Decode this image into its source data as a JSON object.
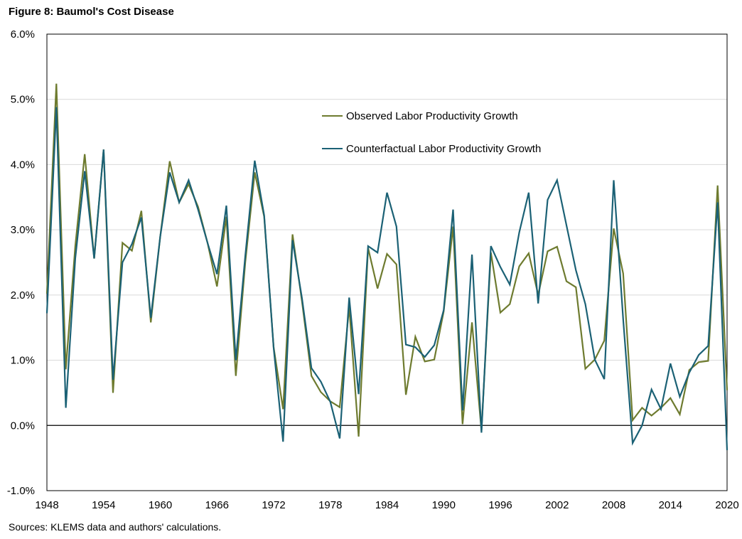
{
  "figure_title": "Figure 8: Baumol's Cost Disease",
  "source_note": "Sources: KLEMS data and authors' calculations.",
  "colors": {
    "observed": "#6e7b2f",
    "counterfactual": "#1b6175",
    "grid": "#d9d9d9",
    "zero": "#000000"
  },
  "chart_data": {
    "type": "line",
    "title": "Baumol's Cost Disease",
    "xlabel": "",
    "ylabel": "",
    "xlim": [
      1948,
      2020
    ],
    "ylim": [
      -1.0,
      6.0
    ],
    "y_ticks": [
      -1.0,
      0.0,
      1.0,
      2.0,
      3.0,
      4.0,
      5.0,
      6.0
    ],
    "y_tick_labels": [
      "-1.0%",
      "0.0%",
      "1.0%",
      "2.0%",
      "3.0%",
      "4.0%",
      "5.0%",
      "6.0%"
    ],
    "x_ticks": [
      1948,
      1954,
      1960,
      1966,
      1972,
      1978,
      1984,
      1990,
      1996,
      2002,
      2008,
      2014,
      2020
    ],
    "x_tick_labels": [
      "1948",
      "1954",
      "1960",
      "1966",
      "1972",
      "1978",
      "1984",
      "1990",
      "1996",
      "2002",
      "2008",
      "2014",
      "2020"
    ],
    "legend_position": "upper-middle",
    "x": [
      1948,
      1949,
      1950,
      1951,
      1952,
      1953,
      1954,
      1955,
      1956,
      1957,
      1958,
      1959,
      1960,
      1961,
      1962,
      1963,
      1964,
      1965,
      1966,
      1967,
      1968,
      1969,
      1970,
      1971,
      1972,
      1973,
      1974,
      1975,
      1976,
      1977,
      1978,
      1979,
      1980,
      1981,
      1982,
      1983,
      1984,
      1985,
      1986,
      1987,
      1988,
      1989,
      1990,
      1991,
      1992,
      1993,
      1994,
      1995,
      1996,
      1997,
      1998,
      1999,
      2000,
      2001,
      2002,
      2003,
      2004,
      2005,
      2006,
      2007,
      2008,
      2009,
      2010,
      2011,
      2012,
      2013,
      2014,
      2015,
      2016,
      2017,
      2018,
      2019,
      2020
    ],
    "series": [
      {
        "name": "Observed Labor Productivity Growth",
        "values": [
          2.02,
          5.24,
          0.86,
          2.75,
          4.16,
          2.56,
          4.23,
          0.5,
          2.8,
          2.68,
          3.29,
          1.58,
          2.9,
          4.05,
          3.42,
          3.7,
          3.35,
          2.8,
          2.13,
          3.2,
          0.76,
          2.5,
          3.88,
          3.2,
          1.2,
          0.25,
          2.93,
          1.9,
          0.76,
          0.51,
          0.37,
          0.28,
          1.82,
          -0.17,
          2.72,
          2.1,
          2.63,
          2.47,
          0.47,
          1.36,
          0.98,
          1.01,
          1.75,
          3.05,
          0.02,
          1.58,
          -0.08,
          2.65,
          1.73,
          1.86,
          2.44,
          2.64,
          2.0,
          2.67,
          2.74,
          2.21,
          2.12,
          0.87,
          1.01,
          1.3,
          3.02,
          2.33,
          0.08,
          0.27,
          0.15,
          0.27,
          0.42,
          0.17,
          0.85,
          0.97,
          0.99,
          3.68,
          0.54
        ]
      },
      {
        "name": "Counterfactual Labor Productivity Growth",
        "values": [
          1.72,
          4.88,
          0.27,
          2.56,
          3.9,
          2.56,
          4.23,
          0.7,
          2.5,
          2.78,
          3.19,
          1.65,
          2.9,
          3.88,
          3.42,
          3.76,
          3.31,
          2.8,
          2.32,
          3.37,
          1.0,
          2.6,
          4.06,
          3.22,
          1.19,
          -0.25,
          2.84,
          1.95,
          0.88,
          0.67,
          0.36,
          -0.2,
          1.96,
          0.48,
          2.75,
          2.65,
          3.57,
          3.05,
          1.24,
          1.2,
          1.05,
          1.23,
          1.77,
          3.31,
          0.23,
          2.62,
          -0.11,
          2.75,
          2.43,
          2.16,
          2.96,
          3.57,
          1.87,
          3.46,
          3.76,
          3.07,
          2.38,
          1.86,
          1.01,
          0.71,
          3.76,
          1.63,
          -0.27,
          0.0,
          0.55,
          0.25,
          0.95,
          0.44,
          0.81,
          1.08,
          1.22,
          3.42,
          -0.38
        ]
      }
    ]
  }
}
